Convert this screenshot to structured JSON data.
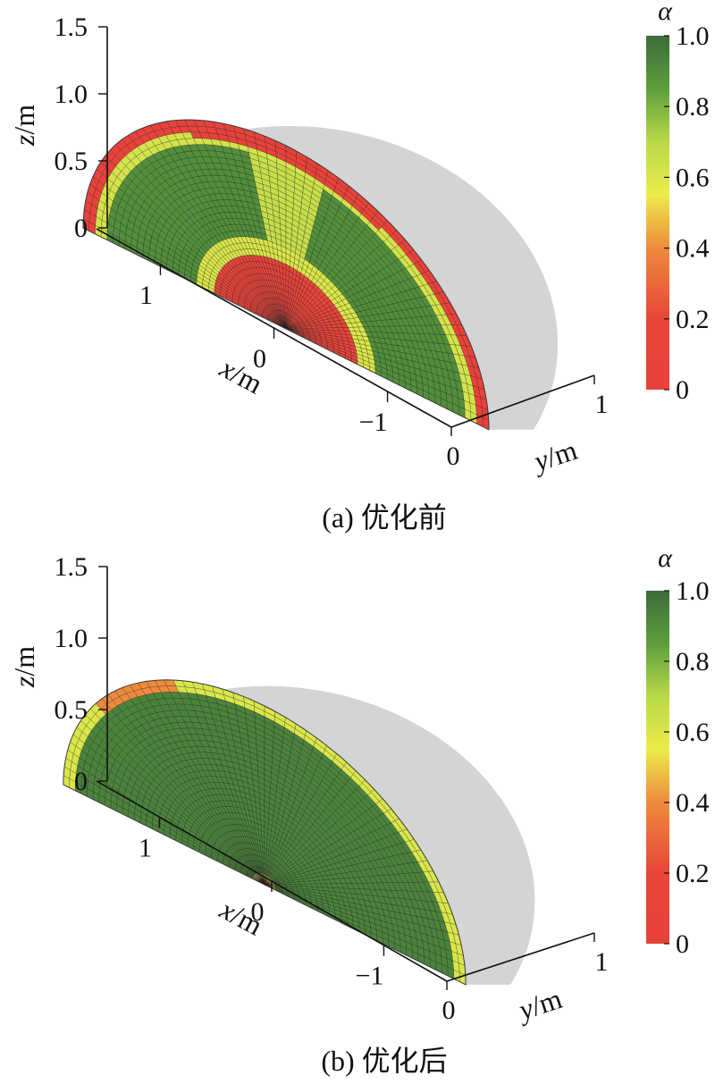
{
  "chart_data": [
    {
      "type": "heatmap",
      "panel": "a",
      "caption": "(a) 优化前",
      "axes": {
        "z": {
          "label_var": "z",
          "label_unit": "/m",
          "ticks": [
            "0",
            "0.5",
            "1.0",
            "1.5"
          ],
          "range": [
            0,
            1.5
          ]
        },
        "x": {
          "label_var": "x",
          "label_unit": "/m",
          "ticks": [
            "1",
            "0",
            "−1"
          ],
          "range": [
            1.3,
            -1.3
          ]
        },
        "y": {
          "label_var": "y",
          "label_unit": "/m",
          "ticks": [
            "0",
            "1"
          ],
          "range": [
            0,
            1
          ]
        }
      },
      "colorbar": {
        "title": "α",
        "ticks": [
          "0",
          "0.2",
          "0.4",
          "0.6",
          "0.8",
          "1.0"
        ],
        "range": [
          0,
          1
        ],
        "stops": [
          {
            "v": 0.0,
            "color": "#e8413a"
          },
          {
            "v": 0.2,
            "color": "#e8463a"
          },
          {
            "v": 0.4,
            "color": "#ee8a3c"
          },
          {
            "v": 0.55,
            "color": "#ecec4a"
          },
          {
            "v": 0.7,
            "color": "#b9d94a"
          },
          {
            "v": 0.85,
            "color": "#5d9f3c"
          },
          {
            "v": 1.0,
            "color": "#3c6b3a"
          }
        ]
      },
      "field_description_bands": [
        {
          "r_from": 0.0,
          "r_to": 0.35,
          "alpha": 0.1
        },
        {
          "r_from": 0.35,
          "r_to": 0.45,
          "alpha": 0.6
        },
        {
          "r_from": 0.45,
          "r_to": 0.88,
          "alpha": 0.9
        },
        {
          "r_from": 0.88,
          "r_to": 0.94,
          "alpha": 0.62
        },
        {
          "r_from": 0.94,
          "r_to": 1.0,
          "alpha": 0.05
        }
      ],
      "shell_color": "#d4d4d4"
    },
    {
      "type": "heatmap",
      "panel": "b",
      "caption": "(b) 优化后",
      "axes": {
        "z": {
          "label_var": "z",
          "label_unit": "/m",
          "ticks": [
            "0",
            "0.5",
            "1.0",
            "1.5"
          ],
          "range": [
            0,
            1.5
          ]
        },
        "x": {
          "label_var": "x",
          "label_unit": "/m",
          "ticks": [
            "1",
            "0",
            "−1"
          ],
          "range": [
            1.3,
            -1.3
          ]
        },
        "y": {
          "label_var": "y",
          "label_unit": "/m",
          "ticks": [
            "0",
            "1"
          ],
          "range": [
            0,
            1
          ]
        }
      },
      "colorbar": {
        "title": "α",
        "ticks": [
          "0",
          "0.2",
          "0.4",
          "0.6",
          "0.8",
          "1.0"
        ],
        "range": [
          0,
          1
        ],
        "stops": [
          {
            "v": 0.0,
            "color": "#e8413a"
          },
          {
            "v": 0.2,
            "color": "#e8463a"
          },
          {
            "v": 0.4,
            "color": "#ee8a3c"
          },
          {
            "v": 0.55,
            "color": "#ecec4a"
          },
          {
            "v": 0.7,
            "color": "#b9d94a"
          },
          {
            "v": 0.85,
            "color": "#5d9f3c"
          },
          {
            "v": 1.0,
            "color": "#3c6b3a"
          }
        ]
      },
      "field_description_bands": [
        {
          "r_from": 0.0,
          "r_to": 0.04,
          "alpha": 0.15
        },
        {
          "r_from": 0.04,
          "r_to": 0.07,
          "alpha": 0.6
        },
        {
          "r_from": 0.07,
          "r_to": 0.955,
          "alpha": 0.93
        },
        {
          "r_from": 0.955,
          "r_to": 1.0,
          "alpha": 0.6
        }
      ],
      "shell_color": "#d4d4d4"
    }
  ]
}
